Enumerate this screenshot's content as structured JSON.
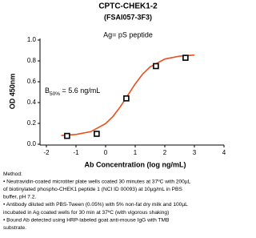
{
  "chart_data": {
    "type": "scatter",
    "title": "CPTC-CHEK1-2",
    "subtitle": "(FSAI057-3F3)",
    "antigen": "Ag= pS peptide",
    "b50": {
      "base": "B",
      "sub": "50%",
      "text": " = 5.6 ng/mL"
    },
    "x_label": "Ab Concentration (log ng/mL)",
    "y_label": "OD 450nm",
    "xlim": [
      -2,
      4
    ],
    "xticks": [
      -2,
      -1,
      0,
      1,
      2,
      3,
      4
    ],
    "ylim": [
      0,
      1
    ],
    "yticks": [
      {
        "value": 0,
        "label": "0.0"
      },
      {
        "value": 0.2,
        "label": "0.2"
      },
      {
        "value": 0.4,
        "label": "0.4"
      },
      {
        "value": 0.6,
        "label": "0.6"
      },
      {
        "value": 0.8,
        "label": "0.8"
      },
      {
        "value": 1,
        "label": "1.0"
      }
    ],
    "series": [
      {
        "x": [
          -1.3,
          -0.3,
          0.7,
          1.7,
          2.7
        ],
        "values": [
          0.08,
          0.1,
          0.44,
          0.75,
          0.83
        ],
        "color": "#000000"
      }
    ],
    "fit": {
      "x": [
        -1.5,
        -1,
        -0.5,
        0,
        0.25,
        0.5,
        0.75,
        1,
        1.25,
        1.5,
        2,
        2.5,
        3
      ],
      "values": [
        0.084,
        0.094,
        0.121,
        0.198,
        0.267,
        0.361,
        0.47,
        0.579,
        0.673,
        0.742,
        0.818,
        0.846,
        0.856
      ],
      "color": "#e8501c"
    }
  },
  "notes": [
    "Method:",
    "• Neutravidin-coated microtiter plate wells coated 30 minutes at 37ºC  with 200µL",
    "of biotinylated phospho-CHEK1 peptide 1 (NCI ID 00093) at 10µg/mL in PBS",
    "buffer, pH 7.2.",
    "• Antibody diluted with PBS-Tween (0.05%) with 5% non-fat dry milk and 100µL",
    "incubated in Ag coated wells for 30 min at 37ºC (with vigorous shaking)",
    "• Bound Ab detected using HRP-labeled goat anti-mouse IgG with TMB",
    "substrate."
  ]
}
